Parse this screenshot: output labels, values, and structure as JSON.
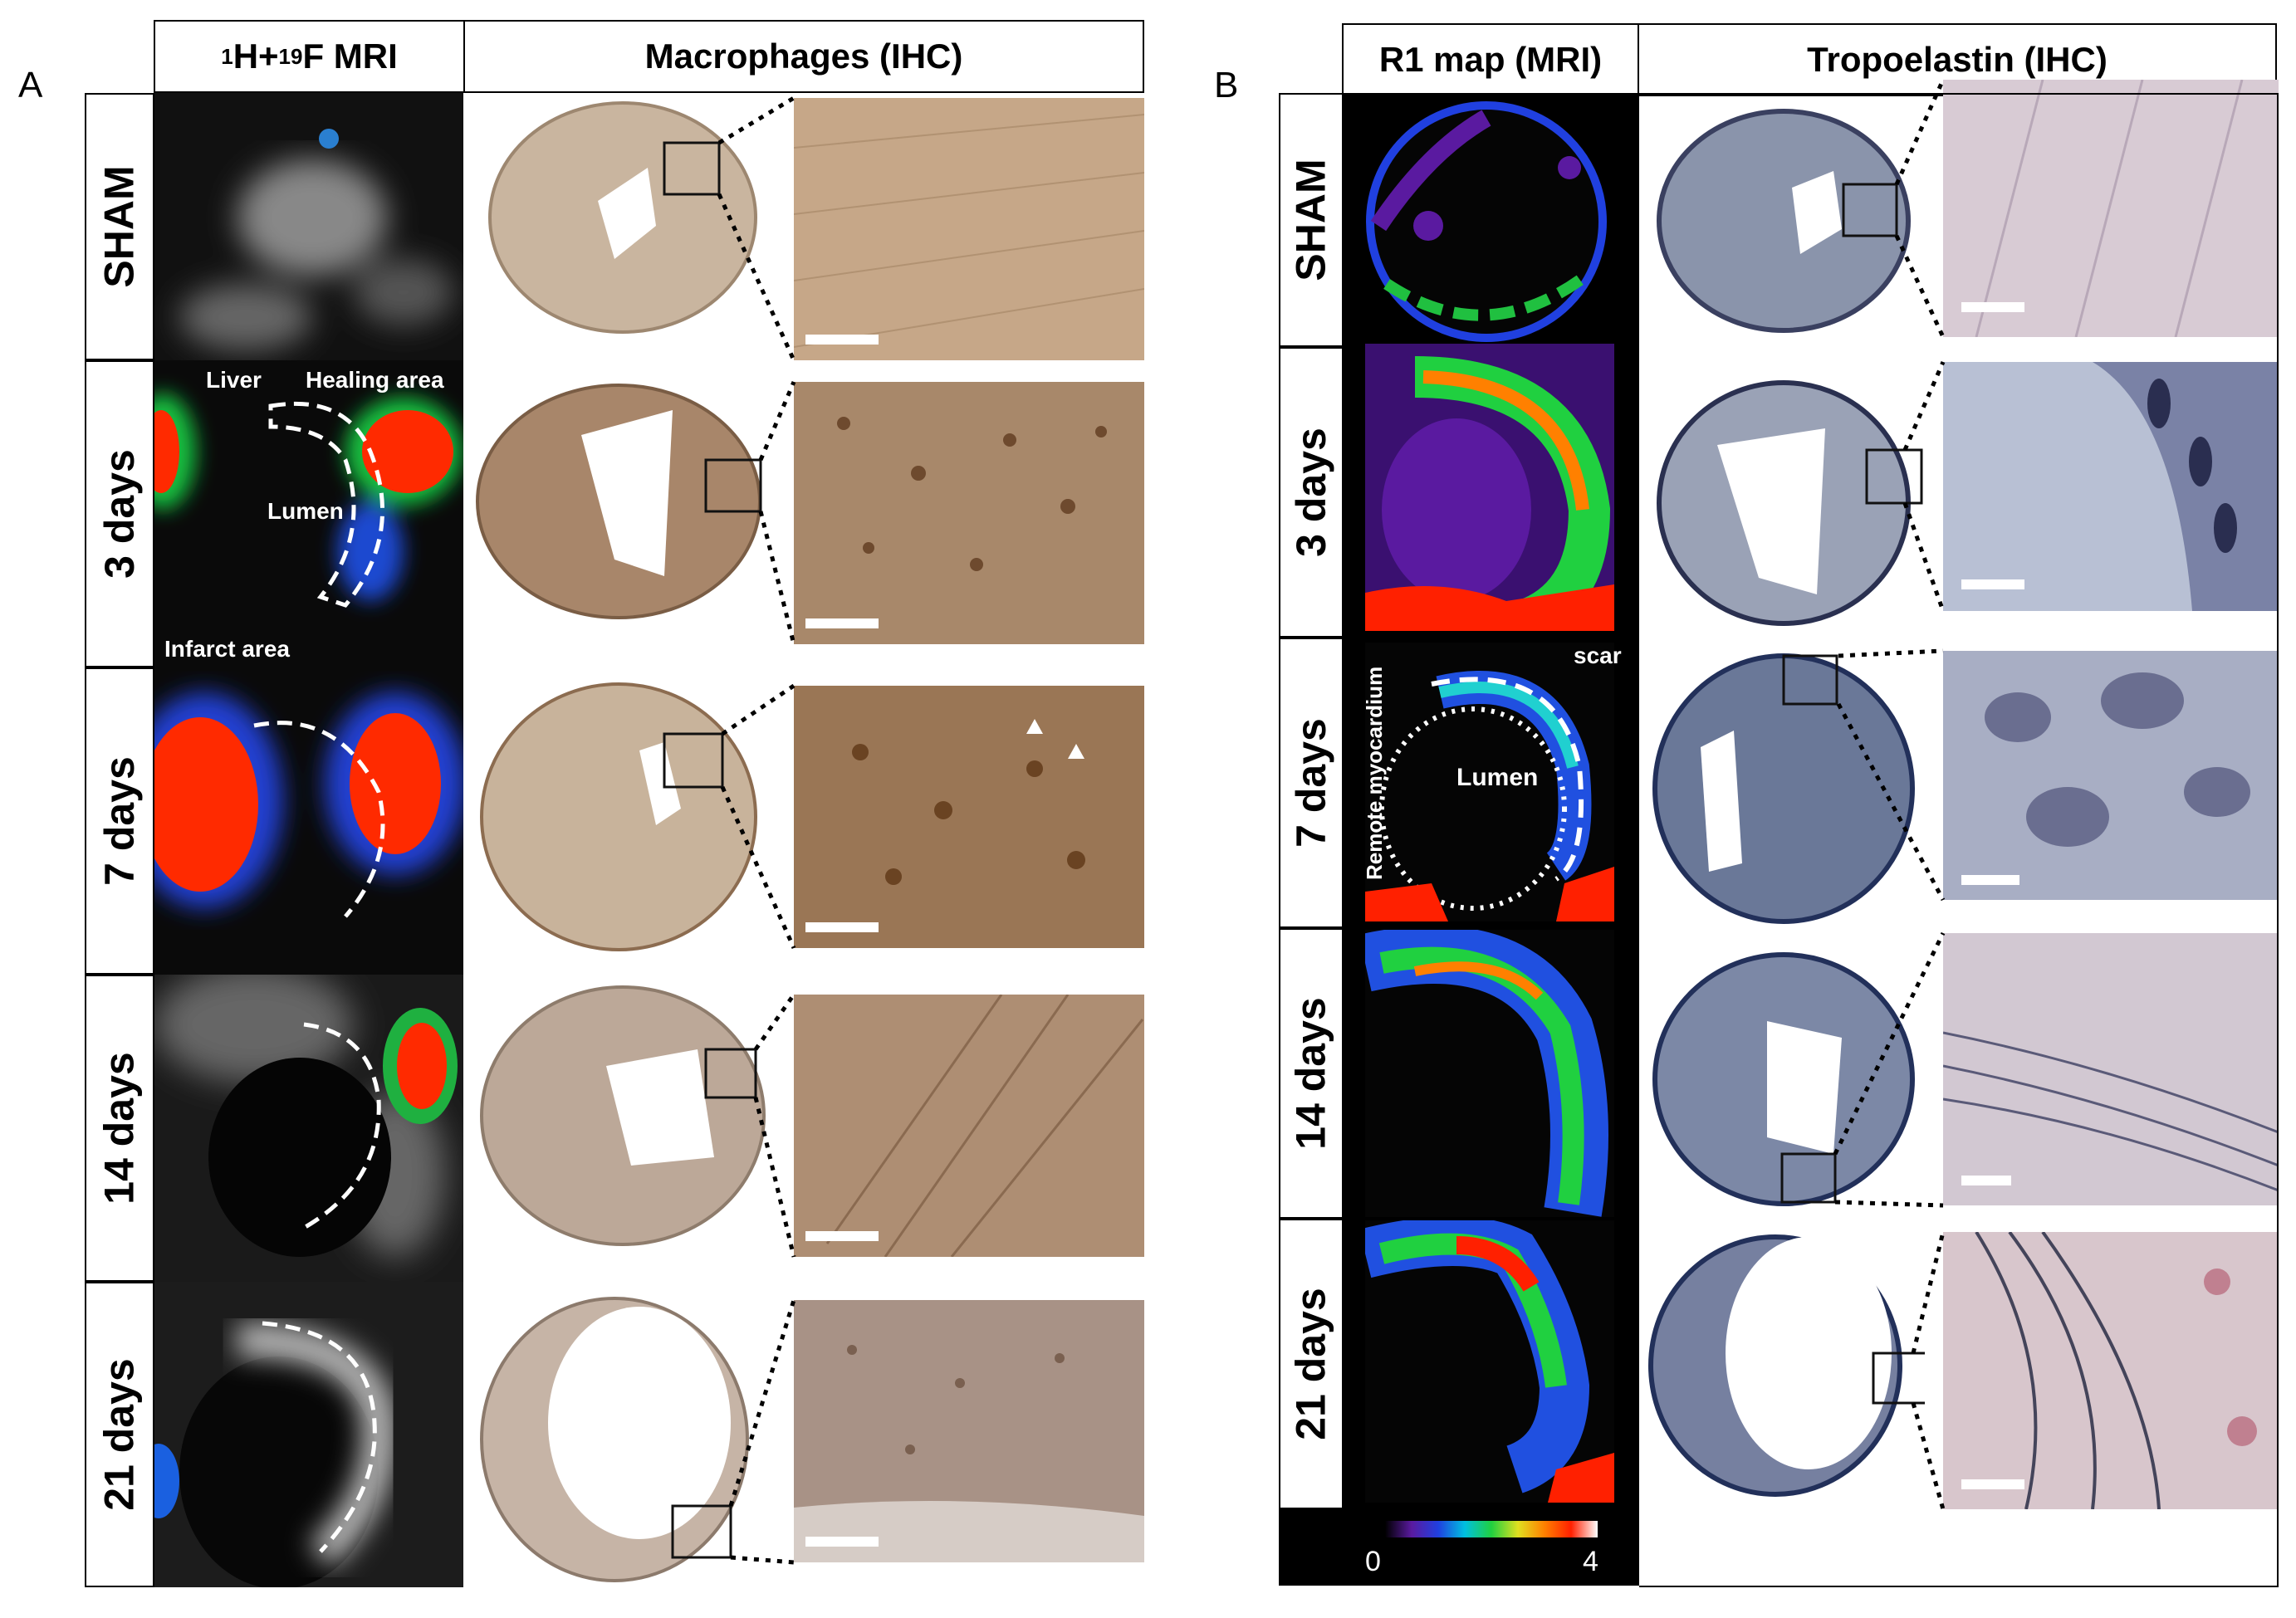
{
  "panels": {
    "a": {
      "letter": "A",
      "col1_header_sup1": "1",
      "col1_header_mid": "H+",
      "col1_header_sup2": "19",
      "col1_header_tail": "F  MRI",
      "col2_header": "Macrophages (IHC)",
      "rows": [
        "SHAM",
        "3 days",
        "7 days",
        "14 days",
        "21 days"
      ],
      "annotations": {
        "liver": "Liver",
        "healing": "Healing area",
        "lumen": "Lumen",
        "infarct": "Infarct area"
      }
    },
    "b": {
      "letter": "B",
      "col1_header": "R1 map (MRI)",
      "col2_header": "Tropoelastin (IHC)",
      "rows": [
        "SHAM",
        "3 days",
        "7 days",
        "14 days",
        "21 days"
      ],
      "annotations": {
        "scar": "scar",
        "remote": "Remote myocardium",
        "lumen": "Lumen"
      },
      "colorbar": {
        "min": "0",
        "max": "4"
      }
    }
  },
  "colors": {
    "ihc_brown": "#b89574",
    "ihc_blue": "#8a94ab",
    "hot": "#ff2a00",
    "r1_purple": "#5a1aa0"
  }
}
